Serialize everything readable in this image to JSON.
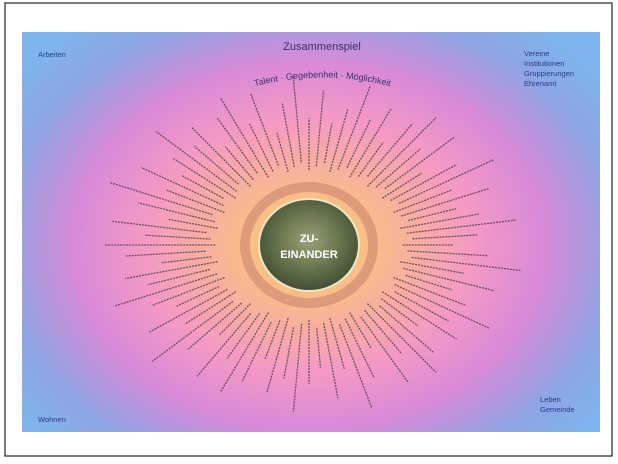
{
  "title": "Zusammenspiel",
  "arc": "Talent · Gegebenheit · Möglichkeit",
  "corners": {
    "top_left": "Arbeiten",
    "top_right": [
      "Vereine",
      "Institutionen",
      "Gruppierungen",
      "Ehrenamt"
    ],
    "bottom_left": "Wohnen",
    "bottom_right": [
      "Leben",
      "Gemeinde"
    ]
  },
  "center": [
    "ZU-",
    "EINANDER"
  ]
}
